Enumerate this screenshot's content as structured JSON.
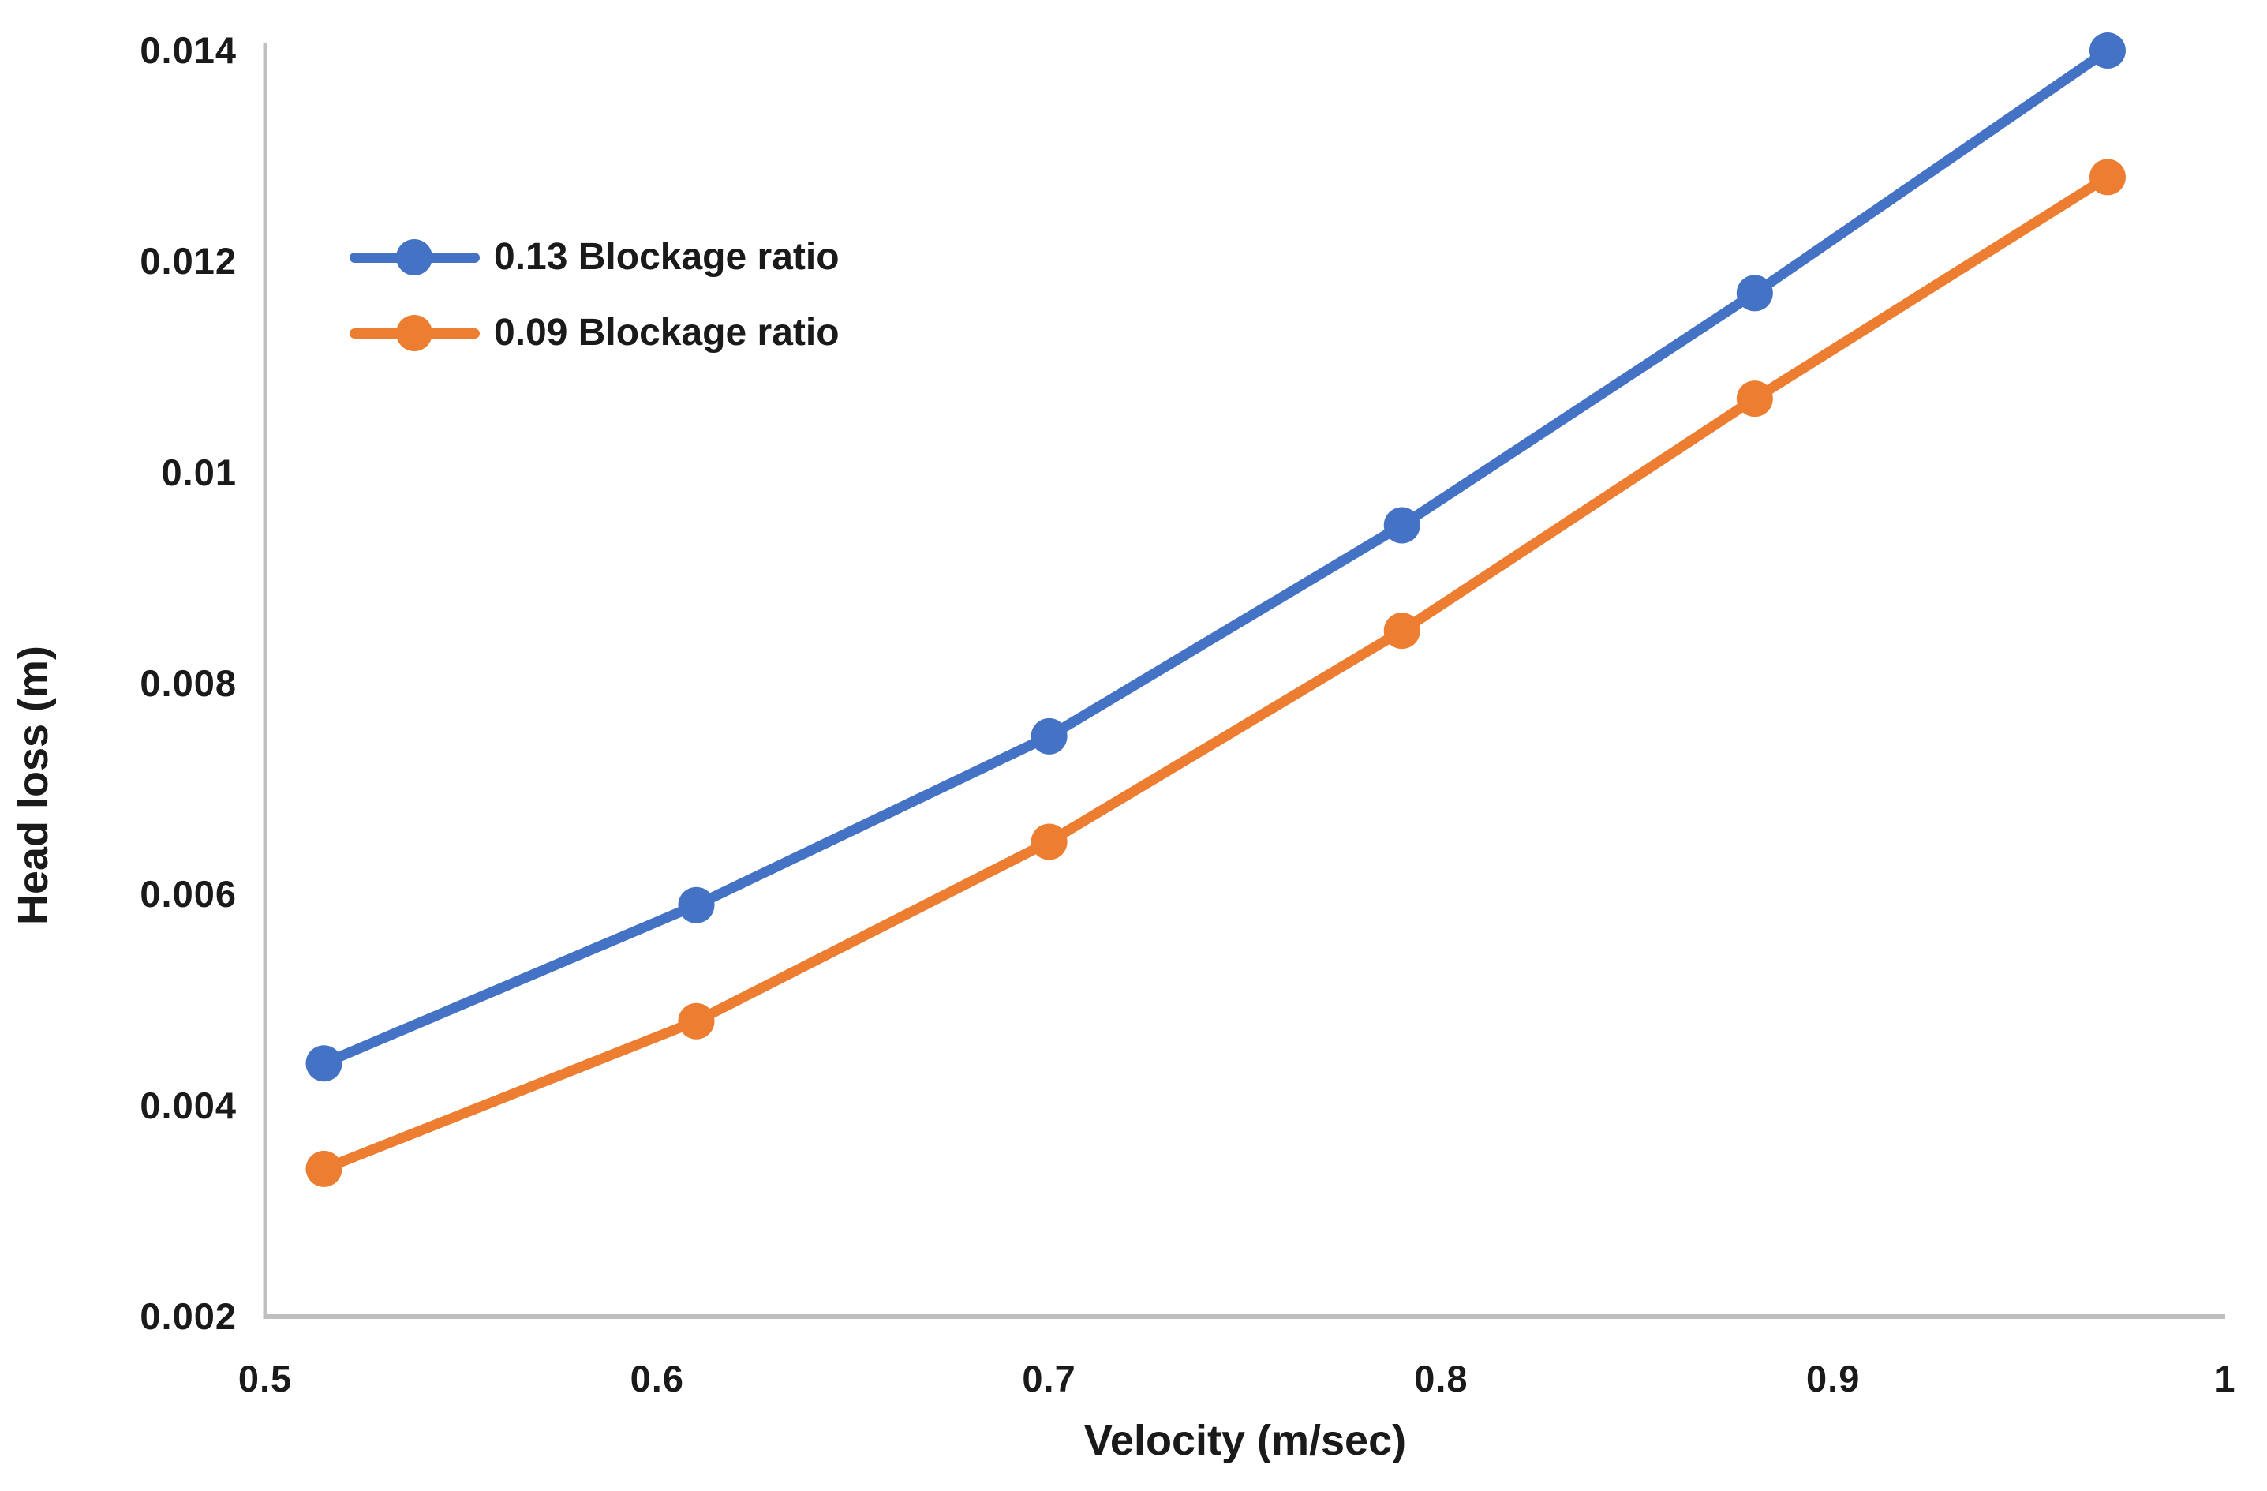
{
  "chart_data": {
    "type": "line",
    "title": "",
    "xlabel": "Velocity (m/sec)",
    "ylabel": "Head loss (m)",
    "x": [
      0.515,
      0.61,
      0.7,
      0.79,
      0.88,
      0.97
    ],
    "series": [
      {
        "name": "0.13 Blockage ratio",
        "color": "#4472C4",
        "values": [
          0.0044,
          0.0059,
          0.0075,
          0.0095,
          0.0117,
          0.014
        ]
      },
      {
        "name": "0.09 Blockage ratio",
        "color": "#ED7D31",
        "values": [
          0.0034,
          0.0048,
          0.0065,
          0.0085,
          0.0107,
          0.0128
        ]
      }
    ],
    "xlim": [
      0.5,
      1.0
    ],
    "ylim": [
      0.002,
      0.014
    ],
    "xticks": [
      0.5,
      0.6,
      0.7,
      0.8,
      0.9,
      1.0
    ],
    "xtick_labels": [
      "0.5",
      "0.6",
      "0.7",
      "0.8",
      "0.9",
      "1"
    ],
    "yticks": [
      0.002,
      0.004,
      0.006,
      0.008,
      0.01,
      0.012,
      0.014
    ],
    "ytick_labels": [
      "0.002",
      "0.004",
      "0.006",
      "0.008",
      "0.01",
      "0.012",
      "0.014"
    ],
    "grid": false,
    "legend_position": "inside-upper-left",
    "marker": "circle",
    "axis_color": "#BFBFBF",
    "text_color": "#1A1A1A",
    "background_color": "#FFFFFF"
  },
  "legend": {
    "items": [
      {
        "label": "0.13 Blockage ratio",
        "color": "#4472C4"
      },
      {
        "label": "0.09 Blockage ratio",
        "color": "#ED7D31"
      }
    ]
  }
}
